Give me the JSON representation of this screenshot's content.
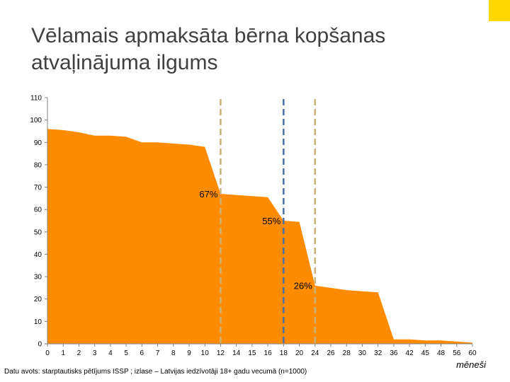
{
  "slide": {
    "title": "Vēlamais apmaksāta bērna kopšanas atvaļinājuma ilgums",
    "source": "Datu avots: starptautisks pētījums ISSP ; izlase – Latvijas iedzīvotāji 18+ gadu vecumā (n=1000)",
    "x_unit": "mēneši",
    "accent_color": "#ffd700"
  },
  "chart_data": {
    "type": "area",
    "title": "Vēlamais apmaksāta bērna kopšanas atvaļinājuma ilgums",
    "xlabel": "mēneši",
    "ylabel": "",
    "ylim": [
      0,
      110
    ],
    "yticks": [
      0,
      10,
      20,
      30,
      40,
      50,
      60,
      70,
      80,
      90,
      100,
      110
    ],
    "xtick_labels": [
      "0",
      "1",
      "2",
      "3",
      "4",
      "5",
      "6",
      "7",
      "8",
      "9",
      "10",
      "12",
      "14",
      "15",
      "16",
      "18",
      "20",
      "24",
      "26",
      "28",
      "30",
      "32",
      "36",
      "42",
      "45",
      "48",
      "56",
      "60"
    ],
    "fill_color": "#ff8c00",
    "grid": false,
    "points": [
      {
        "x": "0",
        "y": 96
      },
      {
        "x": "1",
        "y": 95.5
      },
      {
        "x": "2",
        "y": 94.5
      },
      {
        "x": "3",
        "y": 93
      },
      {
        "x": "4",
        "y": 93
      },
      {
        "x": "5",
        "y": 92.5
      },
      {
        "x": "6",
        "y": 90
      },
      {
        "x": "7",
        "y": 90
      },
      {
        "x": "8",
        "y": 89.5
      },
      {
        "x": "9",
        "y": 89
      },
      {
        "x": "10",
        "y": 88
      },
      {
        "x": "12",
        "y": 67
      },
      {
        "x": "14",
        "y": 66.5
      },
      {
        "x": "15",
        "y": 66
      },
      {
        "x": "16",
        "y": 65.5
      },
      {
        "x": "18",
        "y": 55
      },
      {
        "x": "20",
        "y": 54.5
      },
      {
        "x": "24",
        "y": 26
      },
      {
        "x": "26",
        "y": 25
      },
      {
        "x": "28",
        "y": 24
      },
      {
        "x": "30",
        "y": 23.5
      },
      {
        "x": "32",
        "y": 23
      },
      {
        "x": "36",
        "y": 2
      },
      {
        "x": "42",
        "y": 2
      },
      {
        "x": "45",
        "y": 1.5
      },
      {
        "x": "48",
        "y": 1.5
      },
      {
        "x": "56",
        "y": 1
      },
      {
        "x": "60",
        "y": 0.5
      }
    ],
    "annotations": [
      {
        "label": "67%",
        "x": "12",
        "y": 67,
        "line_color": "#c8b27a"
      },
      {
        "label": "55%",
        "x": "18",
        "y": 55,
        "line_color": "#4a6fa5"
      },
      {
        "label": "26%",
        "x": "24",
        "y": 26,
        "line_color": "#c8b27a"
      }
    ]
  }
}
